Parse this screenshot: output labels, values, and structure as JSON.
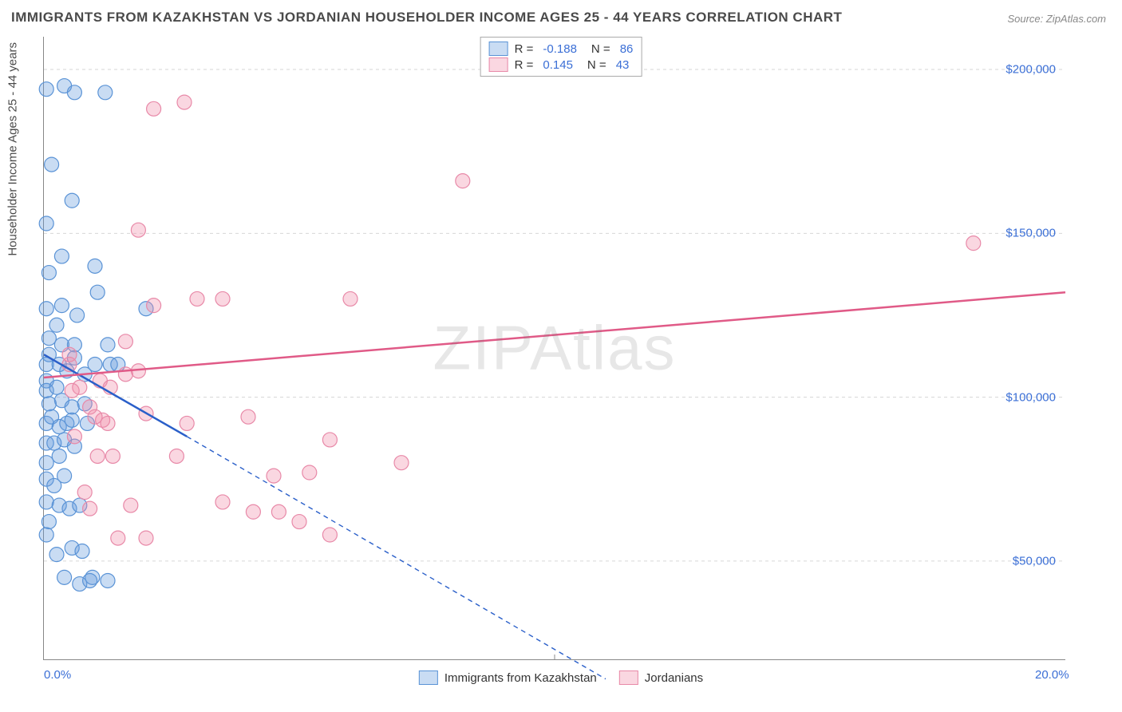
{
  "title": "IMMIGRANTS FROM KAZAKHSTAN VS JORDANIAN HOUSEHOLDER INCOME AGES 25 - 44 YEARS CORRELATION CHART",
  "source": "Source: ZipAtlas.com",
  "watermark": "ZIPAtlas",
  "chart": {
    "type": "scatter",
    "background_color": "#ffffff",
    "grid_color": "#d6d6d6",
    "axis_color": "#888888",
    "text_color": "#4a4a4a",
    "value_color": "#3b6fd6",
    "y_axis_label": "Householder Income Ages 25 - 44 years",
    "xlim": [
      0,
      20
    ],
    "ylim": [
      20000,
      210000
    ],
    "x_ticks": [
      {
        "v": 0,
        "label": "0.0%"
      },
      {
        "v": 20,
        "label": "20.0%"
      }
    ],
    "y_ticks": [
      {
        "v": 50000,
        "label": "$50,000"
      },
      {
        "v": 100000,
        "label": "$100,000"
      },
      {
        "v": 150000,
        "label": "$150,000"
      },
      {
        "v": 200000,
        "label": "$200,000"
      }
    ],
    "series": [
      {
        "name": "Immigrants from Kazakhstan",
        "color_fill": "rgba(99,155,222,0.35)",
        "color_stroke": "#5a93d6",
        "trend_color": "#2a5fc9",
        "r": -0.188,
        "n": 86,
        "trend": {
          "x1": 0,
          "y1": 113000,
          "x2": 2.8,
          "y2": 88000,
          "ext_x2": 11.0,
          "ext_y2": 14000
        },
        "marker_radius": 9,
        "points": [
          [
            0.05,
            194000
          ],
          [
            0.4,
            195000
          ],
          [
            0.6,
            193000
          ],
          [
            1.2,
            193000
          ],
          [
            0.15,
            171000
          ],
          [
            0.05,
            153000
          ],
          [
            0.55,
            160000
          ],
          [
            0.1,
            138000
          ],
          [
            0.35,
            143000
          ],
          [
            1.0,
            140000
          ],
          [
            1.05,
            132000
          ],
          [
            0.35,
            128000
          ],
          [
            0.05,
            127000
          ],
          [
            0.65,
            125000
          ],
          [
            2.0,
            127000
          ],
          [
            0.1,
            118000
          ],
          [
            0.25,
            122000
          ],
          [
            0.1,
            113000
          ],
          [
            0.6,
            116000
          ],
          [
            0.35,
            116000
          ],
          [
            0.05,
            110000
          ],
          [
            0.05,
            105000
          ],
          [
            0.3,
            110000
          ],
          [
            0.45,
            108000
          ],
          [
            0.6,
            112000
          ],
          [
            0.8,
            107000
          ],
          [
            1.0,
            110000
          ],
          [
            1.3,
            110000
          ],
          [
            1.25,
            116000
          ],
          [
            1.45,
            110000
          ],
          [
            0.05,
            102000
          ],
          [
            0.25,
            103000
          ],
          [
            0.1,
            98000
          ],
          [
            0.35,
            99000
          ],
          [
            0.55,
            97000
          ],
          [
            0.8,
            98000
          ],
          [
            0.05,
            92000
          ],
          [
            0.15,
            94000
          ],
          [
            0.3,
            91000
          ],
          [
            0.45,
            92000
          ],
          [
            0.55,
            93000
          ],
          [
            0.85,
            92000
          ],
          [
            0.05,
            86000
          ],
          [
            0.2,
            86000
          ],
          [
            0.4,
            87000
          ],
          [
            0.6,
            85000
          ],
          [
            0.05,
            80000
          ],
          [
            0.3,
            82000
          ],
          [
            0.05,
            75000
          ],
          [
            0.2,
            73000
          ],
          [
            0.4,
            76000
          ],
          [
            0.55,
            54000
          ],
          [
            0.75,
            53000
          ],
          [
            0.25,
            52000
          ],
          [
            0.95,
            45000
          ],
          [
            0.4,
            45000
          ],
          [
            0.7,
            43000
          ],
          [
            0.9,
            44000
          ],
          [
            1.25,
            44000
          ],
          [
            0.05,
            68000
          ],
          [
            0.3,
            67000
          ],
          [
            0.5,
            66000
          ],
          [
            0.7,
            67000
          ],
          [
            0.1,
            62000
          ],
          [
            0.05,
            58000
          ]
        ]
      },
      {
        "name": "Jordanians",
        "color_fill": "rgba(240,140,170,0.35)",
        "color_stroke": "#e889a8",
        "trend_color": "#e05a87",
        "r": 0.145,
        "n": 43,
        "trend": {
          "x1": 0,
          "y1": 106000,
          "x2": 20,
          "y2": 132000
        },
        "marker_radius": 9,
        "points": [
          [
            2.15,
            188000
          ],
          [
            2.75,
            190000
          ],
          [
            8.2,
            166000
          ],
          [
            1.85,
            151000
          ],
          [
            18.2,
            147000
          ],
          [
            3.0,
            130000
          ],
          [
            3.5,
            130000
          ],
          [
            2.15,
            128000
          ],
          [
            6.0,
            130000
          ],
          [
            1.6,
            117000
          ],
          [
            0.7,
            103000
          ],
          [
            0.5,
            113000
          ],
          [
            1.1,
            105000
          ],
          [
            1.3,
            103000
          ],
          [
            1.6,
            107000
          ],
          [
            1.85,
            108000
          ],
          [
            0.55,
            102000
          ],
          [
            0.9,
            97000
          ],
          [
            1.15,
            93000
          ],
          [
            1.0,
            94000
          ],
          [
            1.25,
            92000
          ],
          [
            2.0,
            95000
          ],
          [
            2.8,
            92000
          ],
          [
            4.0,
            94000
          ],
          [
            0.6,
            88000
          ],
          [
            1.05,
            82000
          ],
          [
            1.35,
            82000
          ],
          [
            0.5,
            110000
          ],
          [
            5.6,
            87000
          ],
          [
            2.6,
            82000
          ],
          [
            4.5,
            76000
          ],
          [
            5.2,
            77000
          ],
          [
            7.0,
            80000
          ],
          [
            1.45,
            57000
          ],
          [
            2.0,
            57000
          ],
          [
            4.1,
            65000
          ],
          [
            4.6,
            65000
          ],
          [
            5.0,
            62000
          ],
          [
            5.6,
            58000
          ],
          [
            0.8,
            71000
          ],
          [
            0.9,
            66000
          ],
          [
            1.7,
            67000
          ],
          [
            3.5,
            68000
          ]
        ]
      }
    ]
  },
  "legend_bottom": [
    {
      "label": "Immigrants from Kazakhstan",
      "fill": "rgba(99,155,222,0.35)",
      "stroke": "#5a93d6"
    },
    {
      "label": "Jordanians",
      "fill": "rgba(240,140,170,0.35)",
      "stroke": "#e889a8"
    }
  ]
}
